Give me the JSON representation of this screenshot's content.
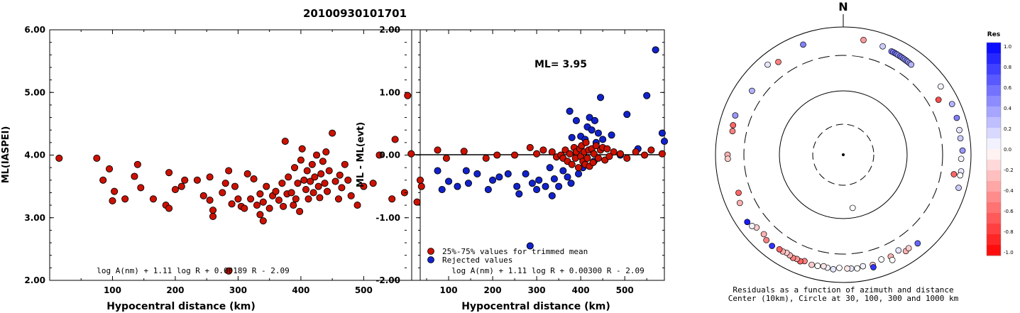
{
  "title": "20100930101701",
  "chart_data": [
    {
      "type": "scatter",
      "ylabel": "ML(IASPEI)",
      "xlabel": "Hypocentral distance (km)",
      "xlim": [
        0,
        590
      ],
      "ylim": [
        2.0,
        6.0
      ],
      "x_ticks": [
        "100",
        "200",
        "300",
        "400",
        "500"
      ],
      "y_ticks": [
        "2.00",
        "3.00",
        "4.00",
        "5.00",
        "6.00"
      ],
      "formula": "log A(nm) + 1.11 log R + 0.00189 R - 2.09",
      "color": "#cc1100",
      "points": [
        [
          15,
          3.95
        ],
        [
          75,
          3.95
        ],
        [
          85,
          3.6
        ],
        [
          95,
          3.78
        ],
        [
          100,
          3.27
        ],
        [
          103,
          3.42
        ],
        [
          120,
          3.3
        ],
        [
          135,
          3.66
        ],
        [
          140,
          3.85
        ],
        [
          145,
          3.48
        ],
        [
          165,
          3.3
        ],
        [
          185,
          3.2
        ],
        [
          190,
          3.15
        ],
        [
          190,
          3.72
        ],
        [
          200,
          3.45
        ],
        [
          210,
          3.5
        ],
        [
          215,
          3.6
        ],
        [
          235,
          3.6
        ],
        [
          245,
          3.35
        ],
        [
          255,
          3.65
        ],
        [
          255,
          3.28
        ],
        [
          260,
          3.12
        ],
        [
          260,
          3.02
        ],
        [
          275,
          3.4
        ],
        [
          280,
          3.55
        ],
        [
          285,
          3.75
        ],
        [
          290,
          3.22
        ],
        [
          295,
          3.5
        ],
        [
          300,
          3.3
        ],
        [
          305,
          3.18
        ],
        [
          310,
          3.15
        ],
        [
          315,
          3.7
        ],
        [
          320,
          3.3
        ],
        [
          325,
          3.62
        ],
        [
          330,
          3.2
        ],
        [
          335,
          3.38
        ],
        [
          335,
          3.05
        ],
        [
          340,
          2.95
        ],
        [
          340,
          3.25
        ],
        [
          345,
          3.5
        ],
        [
          350,
          3.15
        ],
        [
          355,
          3.35
        ],
        [
          360,
          3.42
        ],
        [
          365,
          3.28
        ],
        [
          370,
          3.55
        ],
        [
          372,
          3.18
        ],
        [
          375,
          4.22
        ],
        [
          378,
          3.38
        ],
        [
          380,
          3.65
        ],
        [
          385,
          3.4
        ],
        [
          388,
          3.2
        ],
        [
          390,
          3.8
        ],
        [
          392,
          3.3
        ],
        [
          395,
          3.55
        ],
        [
          398,
          3.1
        ],
        [
          400,
          3.92
        ],
        [
          402,
          4.1
        ],
        [
          405,
          3.6
        ],
        [
          408,
          3.45
        ],
        [
          410,
          3.75
        ],
        [
          412,
          3.3
        ],
        [
          415,
          3.58
        ],
        [
          418,
          3.85
        ],
        [
          420,
          3.4
        ],
        [
          422,
          3.65
        ],
        [
          425,
          4.0
        ],
        [
          428,
          3.5
        ],
        [
          430,
          3.32
        ],
        [
          432,
          3.7
        ],
        [
          435,
          3.9
        ],
        [
          438,
          3.55
        ],
        [
          440,
          4.05
        ],
        [
          442,
          3.42
        ],
        [
          445,
          3.75
        ],
        [
          450,
          4.35
        ],
        [
          455,
          3.58
        ],
        [
          460,
          3.3
        ],
        [
          462,
          3.68
        ],
        [
          465,
          3.48
        ],
        [
          470,
          3.85
        ],
        [
          475,
          3.6
        ],
        [
          480,
          3.35
        ],
        [
          490,
          3.2
        ],
        [
          500,
          3.5
        ],
        [
          515,
          3.55
        ],
        [
          525,
          4.0
        ],
        [
          545,
          3.3
        ],
        [
          550,
          4.25
        ],
        [
          565,
          3.4
        ],
        [
          570,
          4.95
        ],
        [
          585,
          3.25
        ],
        [
          590,
          3.6
        ],
        [
          592,
          3.5
        ],
        [
          285,
          2.15
        ]
      ]
    },
    {
      "type": "scatter",
      "ylabel": "ML - ML(evt)",
      "xlabel": "Hypocentral distance (km)",
      "xlim": [
        0,
        590
      ],
      "ylim": [
        -2.0,
        2.0
      ],
      "x_ticks": [
        "100",
        "200",
        "300",
        "400",
        "500"
      ],
      "y_ticks": [
        "-2.00",
        "-1.00",
        "0.00",
        "1.00",
        "2.00"
      ],
      "annotation": "ML= 3.95",
      "formula": "log A(nm) + 1.11 log R + 0.00300 R - 2.09",
      "legend": [
        "25%-75% values for trimmed mean",
        "Rejected values"
      ],
      "colors": {
        "trimmed": "#cc1100",
        "rejected": "#1122cc"
      },
      "trimmed": [
        [
          15,
          0.02
        ],
        [
          75,
          0.08
        ],
        [
          95,
          -0.05
        ],
        [
          135,
          0.06
        ],
        [
          185,
          -0.05
        ],
        [
          210,
          0.0
        ],
        [
          250,
          0.0
        ],
        [
          285,
          0.12
        ],
        [
          300,
          0.02
        ],
        [
          315,
          0.08
        ],
        [
          335,
          0.05
        ],
        [
          345,
          -0.03
        ],
        [
          355,
          0.0
        ],
        [
          360,
          -0.05
        ],
        [
          365,
          0.08
        ],
        [
          370,
          -0.1
        ],
        [
          375,
          0.02
        ],
        [
          380,
          -0.15
        ],
        [
          385,
          0.12
        ],
        [
          388,
          -0.05
        ],
        [
          390,
          0.05
        ],
        [
          395,
          -0.2
        ],
        [
          398,
          0.1
        ],
        [
          400,
          -0.02
        ],
        [
          402,
          0.15
        ],
        [
          405,
          -0.1
        ],
        [
          408,
          0.05
        ],
        [
          410,
          -0.15
        ],
        [
          412,
          0.2
        ],
        [
          415,
          -0.05
        ],
        [
          418,
          0.08
        ],
        [
          420,
          -0.18
        ],
        [
          425,
          0.1
        ],
        [
          428,
          -0.12
        ],
        [
          430,
          0.02
        ],
        [
          435,
          0.15
        ],
        [
          440,
          -0.05
        ],
        [
          445,
          0.08
        ],
        [
          450,
          0.12
        ],
        [
          455,
          -0.08
        ],
        [
          460,
          0.1
        ],
        [
          465,
          -0.02
        ],
        [
          475,
          0.05
        ],
        [
          490,
          0.02
        ],
        [
          505,
          -0.05
        ],
        [
          525,
          0.05
        ],
        [
          545,
          0.0
        ],
        [
          560,
          0.08
        ],
        [
          585,
          0.02
        ]
      ],
      "rejected": [
        [
          75,
          -0.25
        ],
        [
          85,
          -0.55
        ],
        [
          100,
          -0.42
        ],
        [
          120,
          -0.5
        ],
        [
          140,
          -0.25
        ],
        [
          145,
          -0.45
        ],
        [
          165,
          -0.3
        ],
        [
          190,
          -0.55
        ],
        [
          200,
          -0.4
        ],
        [
          215,
          -0.35
        ],
        [
          235,
          -0.3
        ],
        [
          255,
          -0.5
        ],
        [
          260,
          -0.62
        ],
        [
          275,
          -0.3
        ],
        [
          290,
          -0.45
        ],
        [
          300,
          -0.55
        ],
        [
          305,
          -0.4
        ],
        [
          320,
          -0.5
        ],
        [
          330,
          -0.2
        ],
        [
          335,
          -0.65
        ],
        [
          340,
          -0.38
        ],
        [
          350,
          -0.5
        ],
        [
          360,
          -0.25
        ],
        [
          370,
          -0.35
        ],
        [
          375,
          0.7
        ],
        [
          378,
          -0.45
        ],
        [
          380,
          0.28
        ],
        [
          390,
          0.55
        ],
        [
          395,
          -0.3
        ],
        [
          400,
          0.3
        ],
        [
          405,
          -0.2
        ],
        [
          410,
          0.25
        ],
        [
          415,
          0.45
        ],
        [
          420,
          0.6
        ],
        [
          425,
          0.4
        ],
        [
          430,
          -0.1
        ],
        [
          432,
          0.55
        ],
        [
          435,
          0.2
        ],
        [
          440,
          0.35
        ],
        [
          445,
          0.92
        ],
        [
          450,
          0.25
        ],
        [
          470,
          0.32
        ],
        [
          490,
          0.0
        ],
        [
          505,
          0.65
        ],
        [
          530,
          0.1
        ],
        [
          550,
          0.95
        ],
        [
          570,
          1.68
        ],
        [
          585,
          0.35
        ],
        [
          590,
          0.22
        ],
        [
          285,
          -1.45
        ]
      ]
    },
    {
      "type": "scatter",
      "title": "N",
      "caption": [
        "Residuals as a function of azimuth and distance",
        "Center (10km), Circle at 30, 100, 300 and 1000 km"
      ],
      "colorbar_title": "Res",
      "colorbar_ticks": [
        "1.0",
        "0.8",
        "0.6",
        "0.4",
        "0.2",
        "0.0",
        "-0.2",
        "-0.4",
        "-0.6",
        "-0.8",
        "-1.0"
      ],
      "colorbar_range": [
        -1.0,
        1.0
      ],
      "rings_km": [
        30,
        100,
        300,
        1000
      ],
      "stations_az_dist_res": [
        [
          25,
          560,
          0.5
        ],
        [
          26,
          560,
          0.45
        ],
        [
          27,
          558,
          0.6
        ],
        [
          28,
          555,
          0.5
        ],
        [
          29,
          552,
          0.4
        ],
        [
          30,
          550,
          0.55
        ],
        [
          31,
          548,
          0.45
        ],
        [
          32,
          545,
          0.5
        ],
        [
          33,
          542,
          0.4
        ],
        [
          34,
          540,
          0.5
        ],
        [
          35,
          538,
          0.35
        ],
        [
          36,
          535,
          0.45
        ],
        [
          37,
          532,
          0.3
        ],
        [
          20,
          590,
          0.2
        ],
        [
          10,
          620,
          -0.4
        ],
        [
          340,
          640,
          0.5
        ],
        [
          320,
          650,
          0.1
        ],
        [
          325,
          540,
          -0.5
        ],
        [
          305,
          500,
          0.3
        ],
        [
          290,
          580,
          0.4
        ],
        [
          285,
          560,
          -0.6
        ],
        [
          282,
          540,
          -0.5
        ],
        [
          270,
          600,
          -0.3
        ],
        [
          268,
          595,
          -0.2
        ],
        [
          55,
          690,
          0.05
        ],
        [
          65,
          720,
          0.3
        ],
        [
          72,
          700,
          0.5
        ],
        [
          78,
          680,
          0.1
        ],
        [
          82,
          670,
          0.2
        ],
        [
          88,
          700,
          0.4
        ],
        [
          92,
          660,
          0.05
        ],
        [
          98,
          690,
          0.1
        ],
        [
          100,
          680,
          0.0
        ],
        [
          106,
          720,
          0.2
        ],
        [
          100,
          520,
          -0.6
        ],
        [
          60,
          470,
          -0.7
        ],
        [
          150,
          480,
          0.1
        ],
        [
          155,
          520,
          -0.3
        ],
        [
          160,
          500,
          0.0
        ],
        [
          165,
          560,
          -0.2
        ],
        [
          170,
          540,
          0.05
        ],
        [
          173,
          570,
          0.0
        ],
        [
          176,
          560,
          0.1
        ],
        [
          178,
          555,
          -0.1
        ],
        [
          182,
          540,
          0.0
        ],
        [
          185,
          580,
          0.1
        ],
        [
          188,
          560,
          0.05
        ],
        [
          190,
          540,
          -0.1
        ],
        [
          193,
          560,
          0.0
        ],
        [
          196,
          570,
          -0.2
        ],
        [
          200,
          540,
          -0.5
        ],
        [
          202,
          580,
          -0.6
        ],
        [
          204,
          560,
          -0.4
        ],
        [
          206,
          575,
          -0.5
        ],
        [
          208,
          555,
          -0.3
        ],
        [
          210,
          540,
          -0.2
        ],
        [
          212,
          560,
          -0.3
        ],
        [
          214,
          560,
          -0.6
        ],
        [
          218,
          600,
          0.8
        ],
        [
          222,
          580,
          -0.5
        ],
        [
          225,
          520,
          -0.3
        ],
        [
          230,
          540,
          -0.2
        ],
        [
          232,
          600,
          0.05
        ],
        [
          245,
          560,
          -0.3
        ],
        [
          250,
          500,
          -0.6
        ],
        [
          235,
          640,
          0.9
        ],
        [
          140,
          600,
          0.6
        ],
        [
          147,
          580,
          -0.3
        ],
        [
          145,
          560,
          -0.2
        ],
        [
          155,
          610,
          0.0
        ],
        [
          165,
          620,
          0.8
        ],
        [
          170,
          70,
          0.0
        ]
      ]
    }
  ]
}
